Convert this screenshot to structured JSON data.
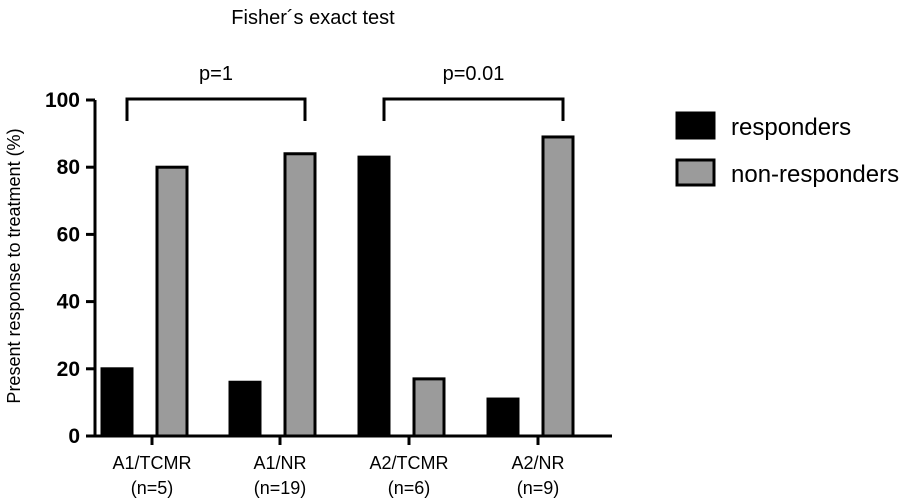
{
  "chart_data": {
    "type": "bar",
    "title": "Fisher´s exact test",
    "ylabel": "Present response to treatment (%)",
    "xlabel": "",
    "ylim": [
      0,
      100
    ],
    "yticks": [
      "0",
      "20",
      "40",
      "60",
      "80",
      "100"
    ],
    "categories": [
      {
        "line1": "A1/TCMR",
        "line2": "(n=5)"
      },
      {
        "line1": "A1/NR",
        "line2": "(n=19)"
      },
      {
        "line1": "A2/TCMR",
        "line2": "(n=6)"
      },
      {
        "line1": "A2/NR",
        "line2": "(n=9)"
      }
    ],
    "series": [
      {
        "name": "responders",
        "color": "#000000",
        "values": [
          20,
          16,
          83,
          11
        ]
      },
      {
        "name": "non-responders",
        "color": "#9b9b9b",
        "values": [
          80,
          84,
          17,
          89
        ]
      }
    ],
    "annotations": [
      {
        "label": "p=1",
        "from_category": 0,
        "to_category": 1
      },
      {
        "label": "p=0.01",
        "from_category": 2,
        "to_category": 3
      }
    ],
    "legend_position": "right"
  }
}
